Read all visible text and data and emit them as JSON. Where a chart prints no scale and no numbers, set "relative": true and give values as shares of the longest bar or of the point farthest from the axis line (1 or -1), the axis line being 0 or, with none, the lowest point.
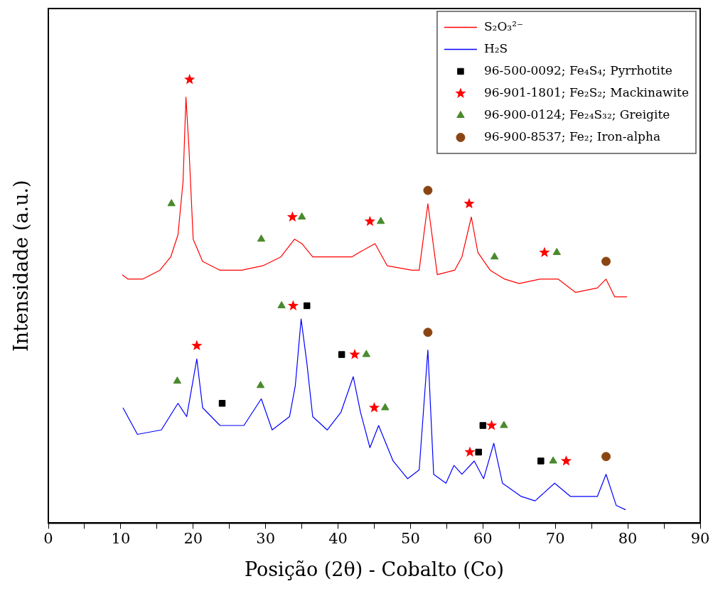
{
  "chart_data": {
    "type": "line",
    "xlabel": "Posição (2θ) - Cobalto (Co)",
    "ylabel": "Intensidade (a.u.)",
    "relative": true,
    "xlim": [
      0,
      90
    ],
    "xticks": [
      0,
      {
        "value": 5,
        "label": null
      },
      10,
      {
        "value": 15,
        "label": null
      },
      20,
      {
        "value": 25,
        "label": null
      },
      30,
      {
        "value": 35,
        "label": null
      },
      40,
      {
        "value": 45,
        "label": null
      },
      50,
      {
        "value": 55,
        "label": null
      },
      60,
      {
        "value": 65,
        "label": null
      },
      70,
      {
        "value": 75,
        "label": null
      },
      80,
      {
        "value": 85,
        "label": null
      },
      90
    ],
    "tick_labels": "x",
    "grid": false,
    "legend": "top right",
    "series": [
      {
        "name": "S₂O₃²⁻",
        "color": "#ff0000",
        "marker": "none",
        "x": [
          10.2,
          11,
          13,
          15.4,
          16.9,
          17.9,
          18.6,
          19.0,
          19.4,
          20.0,
          21.3,
          23.7,
          26.7,
          29.6,
          32.1,
          34.0,
          35.0,
          36.5,
          38.5,
          40.4,
          41.9,
          42.9,
          45.1,
          46.8,
          50.2,
          51.2,
          52.4,
          53.7,
          56.1,
          57.1,
          58.4,
          59.3,
          61.0,
          63.0,
          65.0,
          67.9,
          70.4,
          72.8,
          75.8,
          77.0,
          78.2,
          79.9
        ],
        "values": [
          0.56,
          0.55,
          0.55,
          0.57,
          0.6,
          0.65,
          0.77,
          0.96,
          0.85,
          0.64,
          0.59,
          0.57,
          0.57,
          0.58,
          0.6,
          0.64,
          0.63,
          0.6,
          0.6,
          0.6,
          0.6,
          0.61,
          0.63,
          0.58,
          0.57,
          0.57,
          0.72,
          0.56,
          0.57,
          0.6,
          0.69,
          0.61,
          0.57,
          0.55,
          0.54,
          0.55,
          0.55,
          0.52,
          0.53,
          0.55,
          0.51,
          0.51
        ]
      },
      {
        "name": "H₂S",
        "color": "#0000ff",
        "marker": "none",
        "x": [
          10.3,
          12.3,
          15.6,
          17.9,
          19.1,
          20.5,
          21.3,
          23.7,
          27.0,
          29.4,
          30.9,
          33.3,
          34.1,
          34.9,
          35.7,
          36.5,
          38.5,
          40.4,
          42.1,
          43.1,
          44.4,
          45.6,
          47.6,
          49.6,
          51.2,
          52.4,
          53.2,
          54.9,
          56.0,
          57.1,
          58.8,
          60.1,
          61.5,
          62.7,
          65.3,
          67.2,
          69.9,
          72.1,
          75.8,
          77.0,
          78.4,
          79.7
        ],
        "values": [
          0.26,
          0.2,
          0.21,
          0.27,
          0.24,
          0.37,
          0.26,
          0.22,
          0.22,
          0.28,
          0.21,
          0.24,
          0.31,
          0.46,
          0.36,
          0.24,
          0.21,
          0.25,
          0.33,
          0.25,
          0.17,
          0.22,
          0.14,
          0.1,
          0.12,
          0.39,
          0.11,
          0.09,
          0.13,
          0.11,
          0.14,
          0.1,
          0.18,
          0.09,
          0.06,
          0.05,
          0.09,
          0.06,
          0.06,
          0.11,
          0.04,
          0.03
        ]
      },
      {
        "name": "96-500-0092; Fe₄S₄; Pyrrhotite",
        "color": "#000000",
        "type": "scatter",
        "marker": "square",
        "x": [
          24.0,
          35.7,
          40.5,
          59.4,
          60.0,
          68.0
        ],
        "values": [
          0.27,
          0.49,
          0.38,
          0.16,
          0.22,
          0.14
        ]
      },
      {
        "name": "96-901-1801; Fe₂S₂; Mackinawite",
        "color": "#ff0000",
        "type": "scatter",
        "marker": "star",
        "x": [
          19.5,
          33.7,
          44.4,
          58.1,
          68.5,
          20.5,
          33.8,
          42.3,
          45.0,
          58.2,
          61.2,
          71.5
        ],
        "values": [
          1.0,
          0.69,
          0.68,
          0.72,
          0.61,
          0.4,
          0.49,
          0.38,
          0.26,
          0.16,
          0.22,
          0.14
        ]
      },
      {
        "name": "96-900-0124; Fe₂₄S₃₂; Greigite",
        "color": "#4a8a2e",
        "type": "scatter",
        "marker": "triangle",
        "x": [
          17.0,
          29.4,
          35.0,
          45.9,
          61.6,
          70.2,
          17.8,
          29.3,
          32.2,
          43.9,
          46.5,
          62.9,
          69.7
        ],
        "values": [
          0.72,
          0.64,
          0.69,
          0.68,
          0.6,
          0.61,
          0.32,
          0.31,
          0.49,
          0.38,
          0.26,
          0.22,
          0.14
        ]
      },
      {
        "name": "96-900-8537; Fe₂; Iron-alpha",
        "color": "#8b4513",
        "type": "scatter",
        "marker": "circle",
        "x": [
          52.4,
          77.0,
          52.4,
          77.0
        ],
        "values": [
          0.75,
          0.59,
          0.43,
          0.15
        ]
      }
    ]
  }
}
